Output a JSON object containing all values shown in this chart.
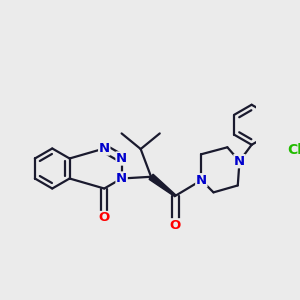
{
  "bg_color": "#ebebeb",
  "atom_colors": {
    "N": "#0000cc",
    "O": "#ff0000",
    "Cl": "#22bb00"
  },
  "bond_color": "#1a1a2e",
  "bond_width": 1.6,
  "font_size": 9.5,
  "figsize": [
    3.0,
    3.0
  ],
  "dpi": 100,
  "xlim": [
    -0.3,
    5.2
  ],
  "ylim": [
    -0.5,
    4.5
  ]
}
